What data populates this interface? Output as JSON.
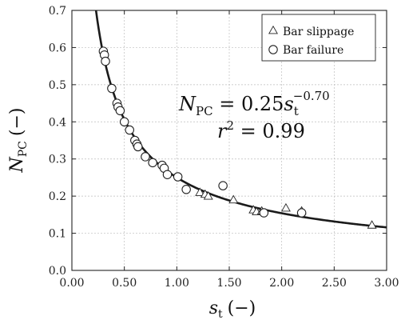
{
  "chart_data": {
    "type": "scatter",
    "xlabel": {
      "main": "s",
      "sub": "t",
      "unit": "(−)"
    },
    "ylabel": {
      "main": "N",
      "sub": "PC",
      "unit": "(−)"
    },
    "xlim": [
      0,
      3
    ],
    "ylim": [
      0,
      0.7
    ],
    "x_ticks": [
      "0.00",
      "0.50",
      "1.00",
      "1.50",
      "2.00",
      "2.50",
      "3.00"
    ],
    "y_ticks": [
      "0.0",
      "0.1",
      "0.2",
      "0.3",
      "0.4",
      "0.5",
      "0.6",
      "0.7"
    ],
    "grid": true,
    "legend_position": "top-right",
    "fit": {
      "coefficient": 0.25,
      "exponent": -0.7,
      "equation": {
        "lhs_main": "N",
        "lhs_sub": "PC",
        "mid": " = 0.25",
        "var_main": "s",
        "var_sub": "t",
        "exp": "−0.70"
      },
      "r2": {
        "lhs": "r",
        "sup": "2",
        "rhs": " = 0.99"
      }
    },
    "series": [
      {
        "name": "Bar slippage",
        "marker": "triangle",
        "points": [
          [
            1.22,
            0.21
          ],
          [
            1.27,
            0.205
          ],
          [
            1.3,
            0.2
          ],
          [
            1.54,
            0.19
          ],
          [
            1.73,
            0.163
          ],
          [
            1.76,
            0.158
          ],
          [
            1.81,
            0.16
          ],
          [
            2.04,
            0.168
          ],
          [
            2.19,
            0.16
          ],
          [
            2.86,
            0.122
          ]
        ]
      },
      {
        "name": "Bar failure",
        "marker": "circle",
        "points": [
          [
            0.3,
            0.59
          ],
          [
            0.31,
            0.58
          ],
          [
            0.32,
            0.563
          ],
          [
            0.38,
            0.49
          ],
          [
            0.43,
            0.45
          ],
          [
            0.44,
            0.44
          ],
          [
            0.46,
            0.43
          ],
          [
            0.5,
            0.4
          ],
          [
            0.55,
            0.378
          ],
          [
            0.6,
            0.35
          ],
          [
            0.62,
            0.34
          ],
          [
            0.63,
            0.333
          ],
          [
            0.7,
            0.306
          ],
          [
            0.77,
            0.29
          ],
          [
            0.86,
            0.283
          ],
          [
            0.88,
            0.275
          ],
          [
            0.91,
            0.258
          ],
          [
            1.01,
            0.252
          ],
          [
            1.09,
            0.218
          ],
          [
            1.44,
            0.228
          ],
          [
            1.83,
            0.155
          ],
          [
            2.19,
            0.155
          ]
        ]
      }
    ]
  }
}
